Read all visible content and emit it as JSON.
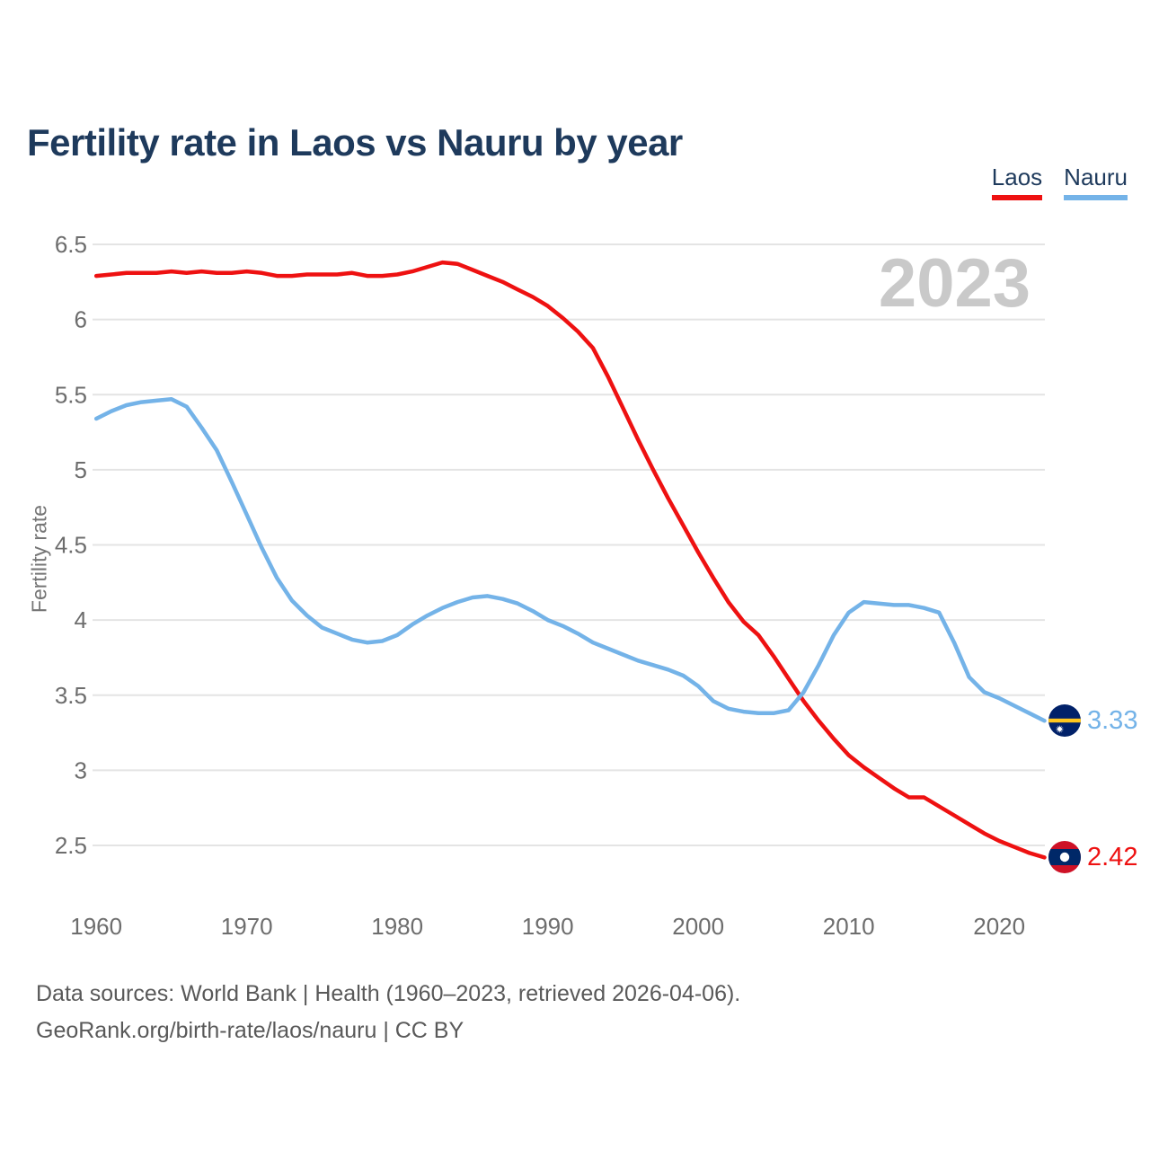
{
  "header": {
    "title": "Fertility rate in Laos vs Nauru by year"
  },
  "legend": {
    "items": [
      {
        "label": "Laos",
        "color": "#ee1111"
      },
      {
        "label": "Nauru",
        "color": "#74b3e8"
      }
    ]
  },
  "watermark": {
    "year": "2023"
  },
  "end_labels": {
    "laos": "2.42",
    "nauru": "3.33"
  },
  "footer": {
    "line1": "Data sources: World Bank | Health (1960–2023, retrieved 2026-04-06).",
    "line2": "GeoRank.org/birth-rate/laos/nauru | CC BY"
  },
  "colors": {
    "title_text": "#1e3a5c",
    "legend_text": "#1e3a5c",
    "tick_text": "#6d6d6d",
    "axis_title_text": "#757575",
    "gridline": "#e4e4e4",
    "watermark_text": "#c9c9c9",
    "footer_text": "#595959",
    "laos_line": "#ee1111",
    "nauru_line": "#74b3e8"
  },
  "flag_icons": {
    "laos": {
      "field": "#ce1126",
      "band": "#002868",
      "disc": "#ffffff"
    },
    "nauru": {
      "field": "#012169",
      "stripe": "#ffc61e",
      "star": "#ffffff"
    }
  },
  "chart_data": {
    "type": "line",
    "title": "Fertility rate in Laos vs Nauru by year",
    "xlabel": "",
    "ylabel": "Fertility rate",
    "grid": "horizontal",
    "legend_position": "top-right",
    "year_watermark": "2023",
    "ylim": [
      2.5,
      6.5
    ],
    "yticks": [
      6.5,
      6,
      5.5,
      5,
      4.5,
      4,
      3.5,
      3,
      2.5
    ],
    "xticks": [
      1960,
      1970,
      1980,
      1990,
      2000,
      2010,
      2020
    ],
    "x": [
      1960,
      1961,
      1962,
      1963,
      1964,
      1965,
      1966,
      1967,
      1968,
      1969,
      1970,
      1971,
      1972,
      1973,
      1974,
      1975,
      1976,
      1977,
      1978,
      1979,
      1980,
      1981,
      1982,
      1983,
      1984,
      1985,
      1986,
      1987,
      1988,
      1989,
      1990,
      1991,
      1992,
      1993,
      1994,
      1995,
      1996,
      1997,
      1998,
      1999,
      2000,
      2001,
      2002,
      2003,
      2004,
      2005,
      2006,
      2007,
      2008,
      2009,
      2010,
      2011,
      2012,
      2013,
      2014,
      2015,
      2016,
      2017,
      2018,
      2019,
      2020,
      2021,
      2022,
      2023
    ],
    "series": [
      {
        "name": "Laos",
        "color": "#ee1111",
        "end_label": "2.42",
        "values": [
          6.29,
          6.3,
          6.31,
          6.31,
          6.31,
          6.32,
          6.31,
          6.32,
          6.31,
          6.31,
          6.32,
          6.31,
          6.29,
          6.29,
          6.3,
          6.3,
          6.3,
          6.31,
          6.29,
          6.29,
          6.3,
          6.32,
          6.35,
          6.38,
          6.37,
          6.33,
          6.29,
          6.25,
          6.2,
          6.15,
          6.09,
          6.01,
          5.92,
          5.81,
          5.62,
          5.41,
          5.2,
          5.0,
          4.81,
          4.63,
          4.45,
          4.28,
          4.12,
          3.99,
          3.9,
          3.76,
          3.61,
          3.46,
          3.33,
          3.21,
          3.1,
          3.02,
          2.95,
          2.88,
          2.82,
          2.82,
          2.76,
          2.7,
          2.64,
          2.58,
          2.53,
          2.49,
          2.45,
          2.42
        ]
      },
      {
        "name": "Nauru",
        "color": "#74b3e8",
        "end_label": "3.33",
        "values": [
          5.34,
          5.39,
          5.43,
          5.45,
          5.46,
          5.47,
          5.42,
          5.28,
          5.13,
          4.92,
          4.7,
          4.48,
          4.28,
          4.13,
          4.03,
          3.95,
          3.91,
          3.87,
          3.85,
          3.86,
          3.9,
          3.97,
          4.03,
          4.08,
          4.12,
          4.15,
          4.16,
          4.14,
          4.11,
          4.06,
          4.0,
          3.96,
          3.91,
          3.85,
          3.81,
          3.77,
          3.73,
          3.7,
          3.67,
          3.63,
          3.56,
          3.46,
          3.41,
          3.39,
          3.38,
          3.38,
          3.4,
          3.52,
          3.7,
          3.9,
          4.05,
          4.12,
          4.11,
          4.1,
          4.1,
          4.08,
          4.05,
          3.85,
          3.62,
          3.52,
          3.48,
          3.43,
          3.38,
          3.33
        ]
      }
    ]
  }
}
